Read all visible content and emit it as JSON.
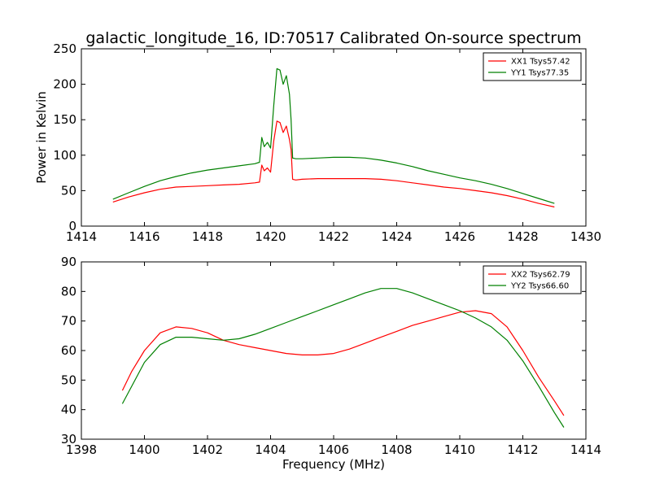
{
  "chart_data": {
    "title": "galactic_longitude_16, ID:70517 Calibrated On-source spectrum",
    "xlabel": "Frequency (MHz)",
    "ylabel": "Power in Kelvin",
    "panels": [
      {
        "type": "line",
        "xlim": [
          1414,
          1430
        ],
        "ylim": [
          0,
          250
        ],
        "xticks": [
          1414,
          1416,
          1418,
          1420,
          1422,
          1424,
          1426,
          1428,
          1430
        ],
        "yticks": [
          0,
          50,
          100,
          150,
          200,
          250
        ],
        "legend_position": "top-right",
        "series": [
          {
            "name": "XX1 Tsys57.42",
            "color": "#ff0000",
            "x": [
              1415.0,
              1415.5,
              1416.0,
              1416.5,
              1417.0,
              1417.5,
              1418.0,
              1418.5,
              1419.0,
              1419.5,
              1419.65,
              1419.72,
              1419.8,
              1419.9,
              1420.0,
              1420.1,
              1420.2,
              1420.3,
              1420.4,
              1420.5,
              1420.6,
              1420.65,
              1420.7,
              1420.8,
              1421.0,
              1421.5,
              1422.0,
              1422.5,
              1423.0,
              1423.5,
              1424.0,
              1424.5,
              1425.0,
              1425.5,
              1426.0,
              1426.5,
              1427.0,
              1427.5,
              1428.0,
              1428.5,
              1429.0
            ],
            "y": [
              34,
              41,
              47,
              52,
              55,
              56,
              57,
              58,
              59,
              61,
              62,
              86,
              78,
              82,
              76,
              120,
              148,
              146,
              132,
              141,
              122,
              108,
              66,
              65,
              66,
              67,
              67,
              67,
              67,
              66,
              64,
              61,
              58,
              55,
              53,
              50,
              47,
              43,
              38,
              32,
              27
            ]
          },
          {
            "name": "YY1 Tsys77.35",
            "color": "#008000",
            "x": [
              1415.0,
              1415.5,
              1416.0,
              1416.5,
              1417.0,
              1417.5,
              1418.0,
              1418.5,
              1419.0,
              1419.5,
              1419.65,
              1419.72,
              1419.8,
              1419.9,
              1420.0,
              1420.1,
              1420.2,
              1420.3,
              1420.4,
              1420.5,
              1420.6,
              1420.65,
              1420.7,
              1420.8,
              1421.0,
              1421.5,
              1422.0,
              1422.5,
              1423.0,
              1423.5,
              1424.0,
              1424.5,
              1425.0,
              1425.5,
              1426.0,
              1426.5,
              1427.0,
              1427.5,
              1428.0,
              1428.5,
              1429.0
            ],
            "y": [
              38,
              47,
              56,
              64,
              70,
              75,
              79,
              82,
              85,
              88,
              90,
              125,
              112,
              118,
              110,
              170,
              222,
              220,
              200,
              212,
              186,
              150,
              96,
              95,
              95,
              96,
              97,
              97,
              96,
              93,
              89,
              84,
              78,
              73,
              68,
              64,
              59,
              53,
              46,
              39,
              32
            ]
          }
        ]
      },
      {
        "type": "line",
        "xlim": [
          1398,
          1414
        ],
        "ylim": [
          30,
          90
        ],
        "xticks": [
          1398,
          1400,
          1402,
          1404,
          1406,
          1408,
          1410,
          1412,
          1414
        ],
        "yticks": [
          30,
          40,
          50,
          60,
          70,
          80,
          90
        ],
        "legend_position": "top-right",
        "series": [
          {
            "name": "XX2 Tsys62.79",
            "color": "#ff0000",
            "x": [
              1399.3,
              1399.6,
              1400.0,
              1400.5,
              1401.0,
              1401.5,
              1402.0,
              1402.5,
              1403.0,
              1403.5,
              1404.0,
              1404.5,
              1405.0,
              1405.5,
              1406.0,
              1406.5,
              1407.0,
              1407.5,
              1408.0,
              1408.5,
              1409.0,
              1409.5,
              1410.0,
              1410.5,
              1411.0,
              1411.5,
              1412.0,
              1412.5,
              1413.0,
              1413.3
            ],
            "y": [
              46.5,
              53,
              60,
              66,
              68,
              67.5,
              66,
              63.5,
              62,
              61,
              60,
              59,
              58.5,
              58.5,
              59,
              60.5,
              62.5,
              64.5,
              66.5,
              68.5,
              70,
              71.5,
              73,
              73.5,
              72.5,
              68,
              60,
              51,
              43,
              38
            ]
          },
          {
            "name": "YY2 Tsys66.60",
            "color": "#008000",
            "x": [
              1399.3,
              1399.6,
              1400.0,
              1400.5,
              1401.0,
              1401.5,
              1402.0,
              1402.5,
              1403.0,
              1403.5,
              1404.0,
              1404.5,
              1405.0,
              1405.5,
              1406.0,
              1406.5,
              1407.0,
              1407.5,
              1408.0,
              1408.5,
              1409.0,
              1409.5,
              1410.0,
              1410.5,
              1411.0,
              1411.5,
              1412.0,
              1412.5,
              1413.0,
              1413.3
            ],
            "y": [
              42,
              48,
              56,
              62,
              64.5,
              64.5,
              64,
              63.5,
              64,
              65.5,
              67.5,
              69.5,
              71.5,
              73.5,
              75.5,
              77.5,
              79.5,
              81,
              81,
              79.5,
              77.5,
              75.5,
              73.5,
              71,
              68,
              63.5,
              56.5,
              48,
              39,
              34
            ]
          }
        ]
      }
    ]
  }
}
